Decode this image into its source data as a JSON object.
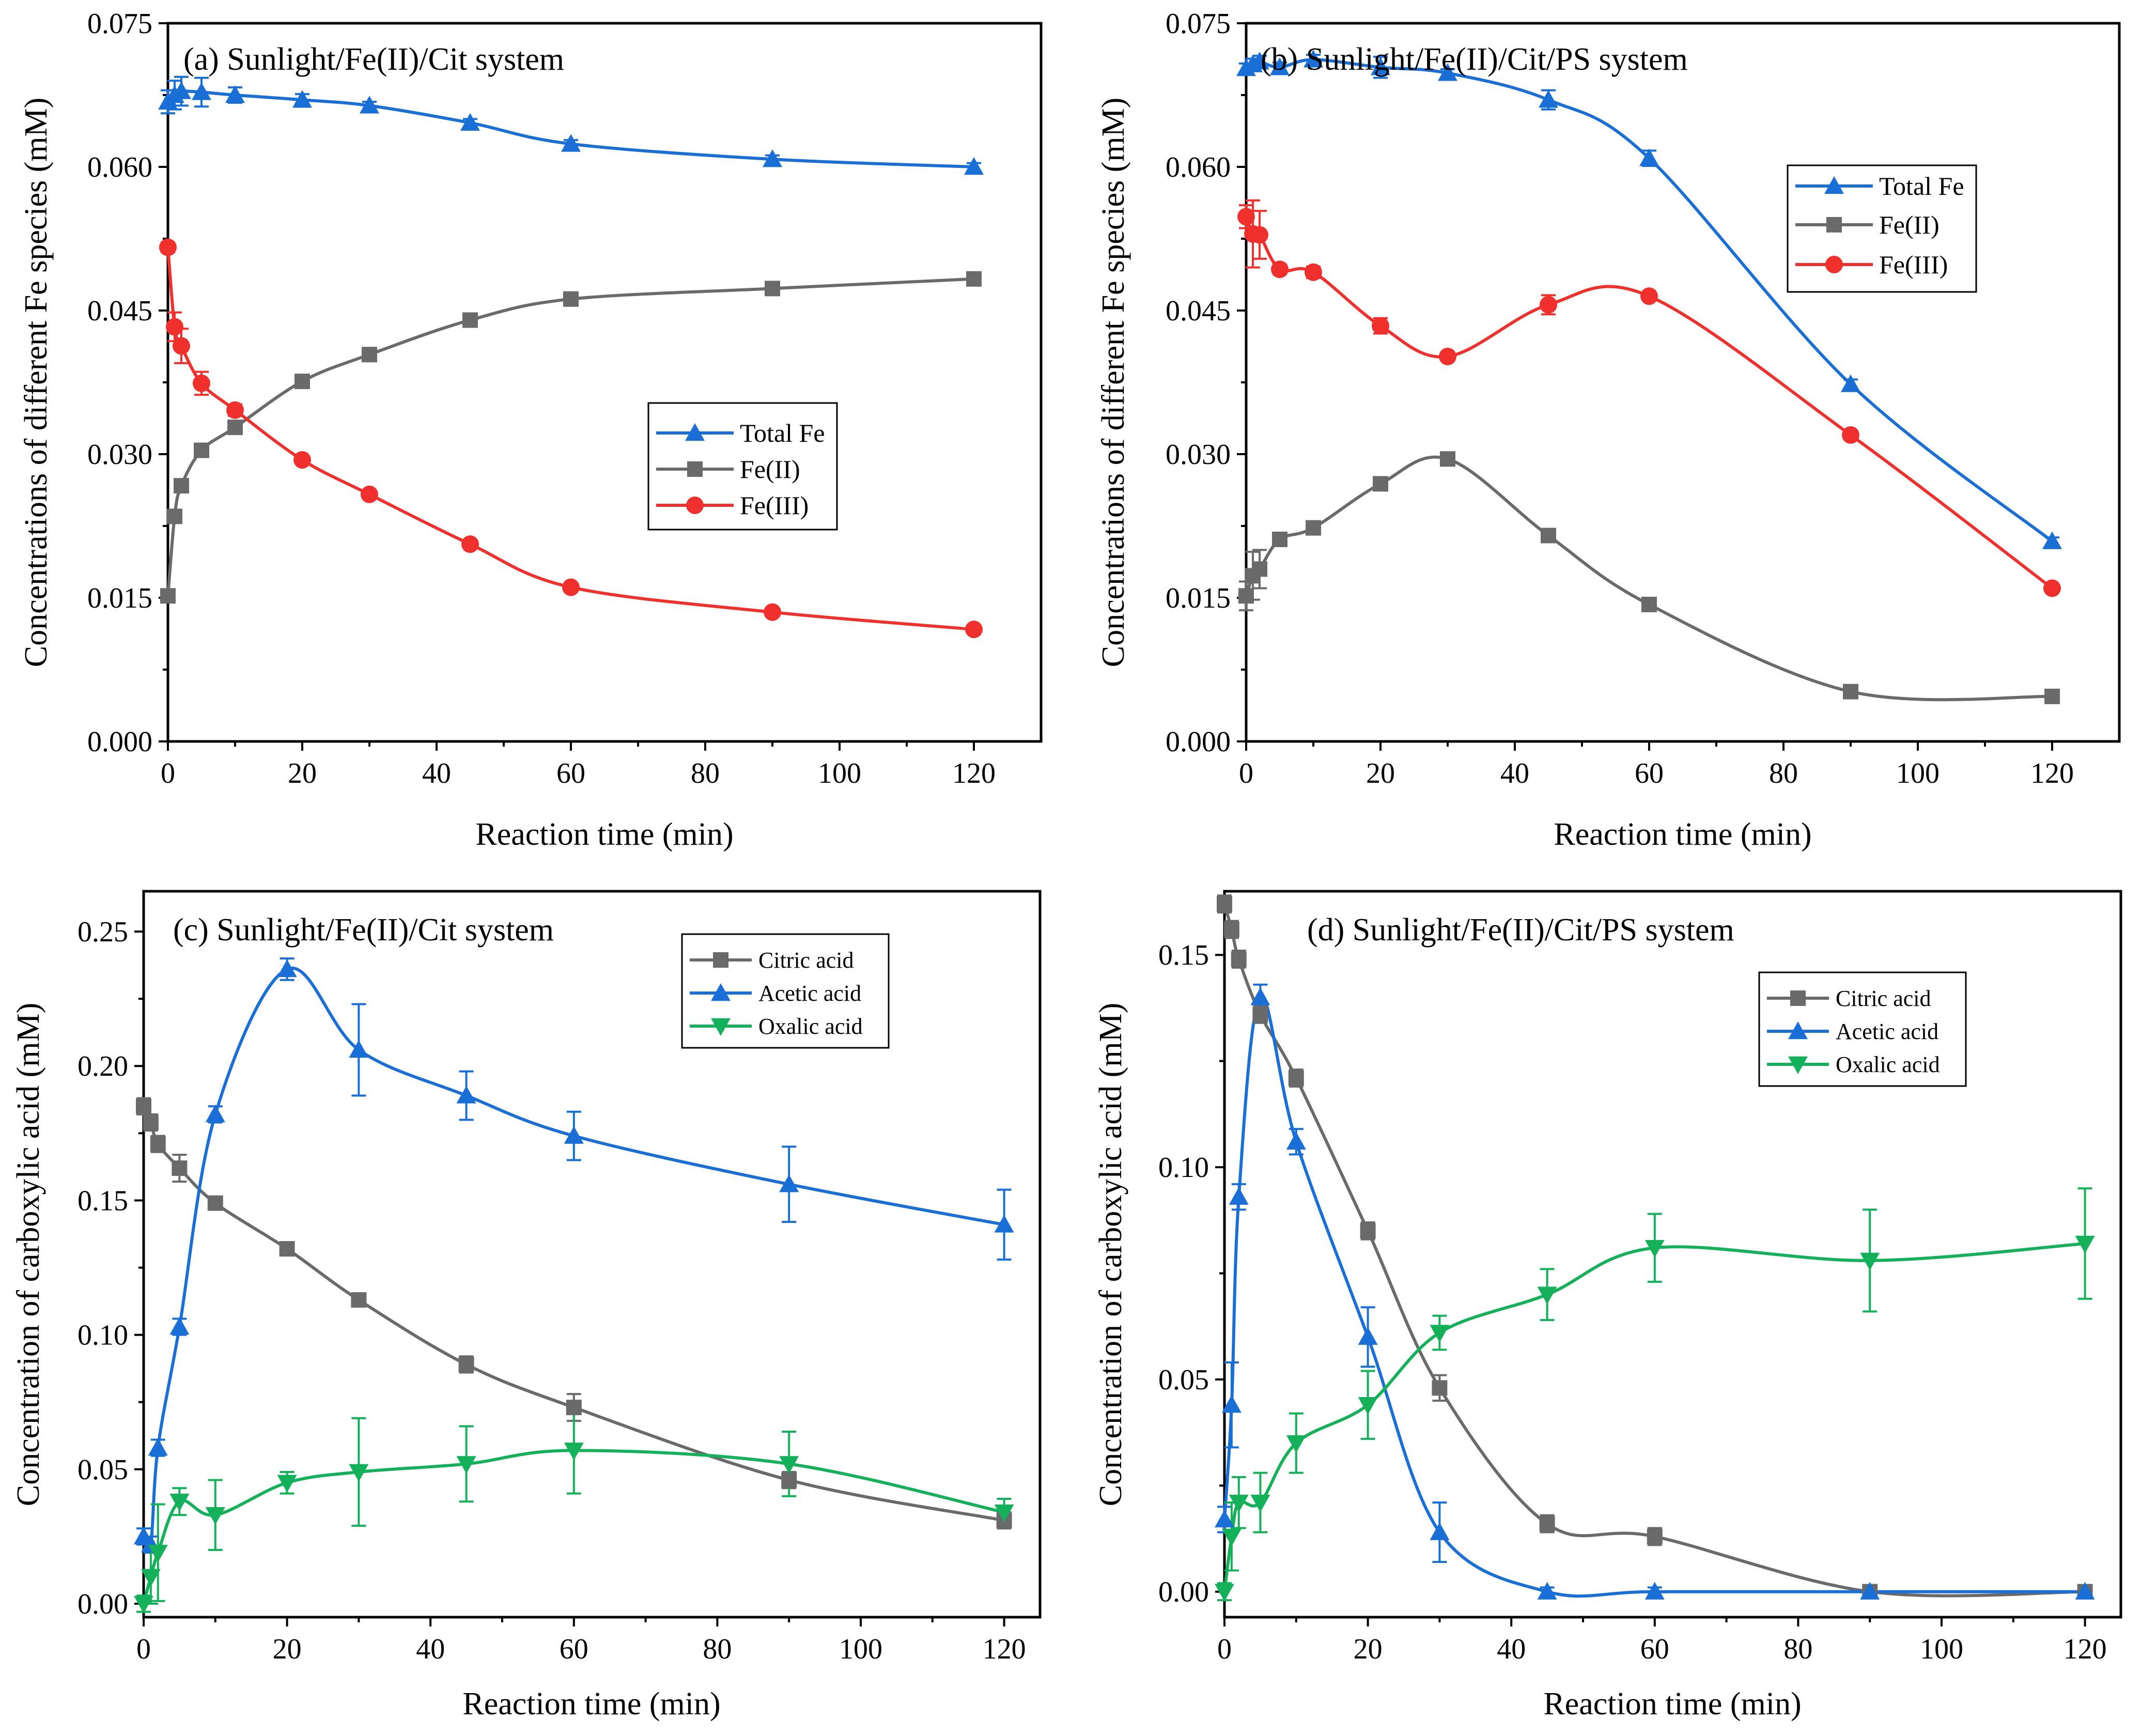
{
  "colors": {
    "total_fe": "#1a6fd6",
    "fe2": "#6a6a6a",
    "fe3": "#f0302d",
    "citric": "#6a6a6a",
    "acetic": "#1a6fd6",
    "oxalic": "#14b05a"
  },
  "chart_data": [
    {
      "id": "a",
      "type": "line",
      "title": "(a) Sunlight/Fe(II)/Cit system",
      "xlabel": "Reaction time (min)",
      "ylabel": "Concentrations of different Fe species (mM)",
      "xlim": [
        0,
        130
      ],
      "ylim": [
        0,
        0.075
      ],
      "xticks": [
        0,
        20,
        40,
        60,
        80,
        100,
        120
      ],
      "yticks": [
        0,
        0.015,
        0.03,
        0.045,
        0.06,
        0.075
      ],
      "ytick_labels": [
        "0.000",
        "0.015",
        "0.030",
        "0.045",
        "0.060",
        "0.075"
      ],
      "legend_position": "center",
      "series": [
        {
          "name": "Total Fe",
          "color_key": "total_fe",
          "marker": "triangle-up",
          "x": [
            0,
            1,
            2,
            5,
            10,
            20,
            30,
            45,
            60,
            90,
            120
          ],
          "y": [
            0.0668,
            0.0675,
            0.0679,
            0.0678,
            0.0675,
            0.067,
            0.0664,
            0.0646,
            0.0624,
            0.0608,
            0.06
          ],
          "err": [
            0.0012,
            0.0015,
            0.0015,
            0.0015,
            0.0008,
            0.0006,
            0.0004,
            0.0004,
            0.0004,
            0.0004,
            0.0004
          ]
        },
        {
          "name": "Fe(II)",
          "color_key": "fe2",
          "marker": "square",
          "x": [
            0,
            1,
            2,
            5,
            10,
            20,
            30,
            45,
            60,
            90,
            120
          ],
          "y": [
            0.0152,
            0.0235,
            0.0267,
            0.0304,
            0.0328,
            0.0376,
            0.0404,
            0.044,
            0.0462,
            0.0473,
            0.0483
          ],
          "err": [
            0.0005,
            0.0005,
            0.0005,
            0.0004,
            0.0004,
            0.0004,
            0.0004,
            0.0004,
            0.0004,
            0.0004,
            0.0004
          ]
        },
        {
          "name": "Fe(III)",
          "color_key": "fe3",
          "marker": "circle",
          "x": [
            0,
            1,
            2,
            5,
            10,
            20,
            30,
            45,
            60,
            90,
            120
          ],
          "y": [
            0.0516,
            0.0433,
            0.0413,
            0.0374,
            0.0346,
            0.0294,
            0.0258,
            0.0206,
            0.0161,
            0.0135,
            0.0117
          ],
          "err": [
            0.0005,
            0.0015,
            0.0018,
            0.0012,
            0.0006,
            0.0004,
            0.0004,
            0.0004,
            0.0004,
            0.0004,
            0.0004
          ]
        }
      ]
    },
    {
      "id": "b",
      "type": "line",
      "title": "(b) Sunlight/Fe(II)/Cit/PS system",
      "xlabel": "Reaction time (min)",
      "ylabel": "Concentrations of different Fe species (mM)",
      "xlim": [
        0,
        130
      ],
      "ylim": [
        0,
        0.075
      ],
      "xticks": [
        0,
        20,
        40,
        60,
        80,
        100,
        120
      ],
      "yticks": [
        0,
        0.015,
        0.03,
        0.045,
        0.06,
        0.075
      ],
      "ytick_labels": [
        "0.000",
        "0.015",
        "0.030",
        "0.045",
        "0.060",
        "0.075"
      ],
      "legend_position": "top-right",
      "series": [
        {
          "name": "Total Fe",
          "color_key": "total_fe",
          "marker": "triangle-up",
          "x": [
            0,
            1,
            2,
            5,
            10,
            20,
            30,
            45,
            60,
            90,
            120
          ],
          "y": [
            0.0703,
            0.0707,
            0.071,
            0.0704,
            0.0712,
            0.0704,
            0.0698,
            0.067,
            0.0609,
            0.0373,
            0.0209
          ],
          "err": [
            0.0005,
            0.0006,
            0.0006,
            0.0005,
            0.0005,
            0.0011,
            0.0004,
            0.001,
            0.0008,
            0.0005,
            0.0004
          ]
        },
        {
          "name": "Fe(II)",
          "color_key": "fe2",
          "marker": "square",
          "x": [
            0,
            1,
            2,
            5,
            10,
            20,
            30,
            45,
            60,
            90,
            120
          ],
          "y": [
            0.0152,
            0.0173,
            0.018,
            0.0211,
            0.0223,
            0.0269,
            0.0295,
            0.0215,
            0.0143,
            0.0052,
            0.0047
          ],
          "err": [
            0.0015,
            0.0025,
            0.002,
            0.0005,
            0.0004,
            0.0004,
            0.0004,
            0.0004,
            0.0004,
            0.0004,
            0.0004
          ]
        },
        {
          "name": "Fe(III)",
          "color_key": "fe3",
          "marker": "circle",
          "x": [
            0,
            1,
            2,
            5,
            10,
            20,
            30,
            45,
            60,
            90,
            120
          ],
          "y": [
            0.0548,
            0.053,
            0.0529,
            0.0493,
            0.049,
            0.0434,
            0.0402,
            0.0456,
            0.0465,
            0.032,
            0.016
          ],
          "err": [
            0.0012,
            0.0035,
            0.0025,
            0.0005,
            0.0006,
            0.0008,
            0.0004,
            0.001,
            0.0004,
            0.0004,
            0.0004
          ]
        }
      ]
    },
    {
      "id": "c",
      "type": "line",
      "title": "(c) Sunlight/Fe(II)/Cit system",
      "xlabel": "Reaction time (min)",
      "ylabel": "Concentration of carboxylic acid (mM)",
      "xlim": [
        0,
        125
      ],
      "ylim": [
        -0.005,
        0.265
      ],
      "xticks": [
        0,
        20,
        40,
        60,
        80,
        100,
        120
      ],
      "yticks": [
        0,
        0.05,
        0.1,
        0.15,
        0.2,
        0.25
      ],
      "ytick_labels": [
        "0.00",
        "0.05",
        "0.10",
        "0.15",
        "0.20",
        "0.25"
      ],
      "legend_position": "top-right",
      "series": [
        {
          "name": "Citric acid",
          "color_key": "citric",
          "marker": "square",
          "x": [
            0,
            1,
            2,
            5,
            10,
            20,
            30,
            45,
            60,
            90,
            120
          ],
          "y": [
            0.185,
            0.179,
            0.171,
            0.162,
            0.149,
            0.132,
            0.113,
            0.089,
            0.073,
            0.046,
            0.031
          ],
          "err": [
            0.003,
            0.003,
            0.003,
            0.005,
            0.002,
            0.002,
            0.002,
            0.003,
            0.005,
            0.003,
            0.003
          ]
        },
        {
          "name": "Acetic acid",
          "color_key": "acetic",
          "marker": "triangle-up",
          "x": [
            0,
            1,
            2,
            5,
            10,
            20,
            30,
            45,
            60,
            90,
            120
          ],
          "y": [
            0.025,
            0.022,
            0.058,
            0.103,
            0.182,
            0.236,
            0.206,
            0.189,
            0.174,
            0.156,
            0.141
          ],
          "err": [
            0.003,
            0.003,
            0.003,
            0.003,
            0.003,
            0.004,
            0.017,
            0.009,
            0.009,
            0.014,
            0.013
          ]
        },
        {
          "name": "Oxalic acid",
          "color_key": "oxalic",
          "marker": "triangle-down",
          "x": [
            0,
            1,
            2,
            5,
            10,
            20,
            30,
            45,
            60,
            90,
            120
          ],
          "y": [
            0.0,
            0.01,
            0.019,
            0.038,
            0.033,
            0.045,
            0.049,
            0.052,
            0.057,
            0.052,
            0.034
          ],
          "err": [
            0.003,
            0.01,
            0.018,
            0.005,
            0.013,
            0.004,
            0.02,
            0.014,
            0.016,
            0.012,
            0.005
          ]
        }
      ]
    },
    {
      "id": "d",
      "type": "line",
      "title": "(d) Sunlight/Fe(II)/Cit/PS system",
      "xlabel": "Reaction time (min)",
      "ylabel": "Concentration of carboxylic acid (mM)",
      "xlim": [
        0,
        125
      ],
      "ylim": [
        -0.006,
        0.165
      ],
      "xticks": [
        0,
        20,
        40,
        60,
        80,
        100,
        120
      ],
      "yticks": [
        0,
        0.05,
        0.1,
        0.15
      ],
      "ytick_labels": [
        "0.00",
        "0.05",
        "0.10",
        "0.15"
      ],
      "legend_position": "top-right",
      "series": [
        {
          "name": "Citric acid",
          "color_key": "citric",
          "marker": "square",
          "x": [
            0,
            1,
            2,
            5,
            10,
            20,
            30,
            45,
            60,
            90,
            120
          ],
          "y": [
            0.162,
            0.156,
            0.149,
            0.136,
            0.121,
            0.085,
            0.048,
            0.016,
            0.013,
            0.0,
            0.0
          ],
          "err": [
            0.002,
            0.002,
            0.002,
            0.002,
            0.002,
            0.002,
            0.003,
            0.002,
            0.002,
            0.001,
            0.001
          ]
        },
        {
          "name": "Acetic acid",
          "color_key": "acetic",
          "marker": "triangle-up",
          "x": [
            0,
            1,
            2,
            5,
            10,
            20,
            30,
            45,
            60,
            90,
            120
          ],
          "y": [
            0.017,
            0.044,
            0.093,
            0.14,
            0.106,
            0.06,
            0.014,
            0.0,
            0.0,
            0.0,
            0.0
          ],
          "err": [
            0.003,
            0.01,
            0.003,
            0.003,
            0.003,
            0.007,
            0.007,
            0.001,
            0.001,
            0.001,
            0.001
          ]
        },
        {
          "name": "Oxalic acid",
          "color_key": "oxalic",
          "marker": "triangle-down",
          "x": [
            0,
            1,
            2,
            5,
            10,
            20,
            30,
            45,
            60,
            90,
            120
          ],
          "y": [
            0.0,
            0.013,
            0.021,
            0.021,
            0.035,
            0.044,
            0.061,
            0.07,
            0.081,
            0.078,
            0.082
          ],
          "err": [
            0.002,
            0.008,
            0.006,
            0.007,
            0.007,
            0.008,
            0.004,
            0.006,
            0.008,
            0.012,
            0.013
          ]
        }
      ]
    }
  ]
}
